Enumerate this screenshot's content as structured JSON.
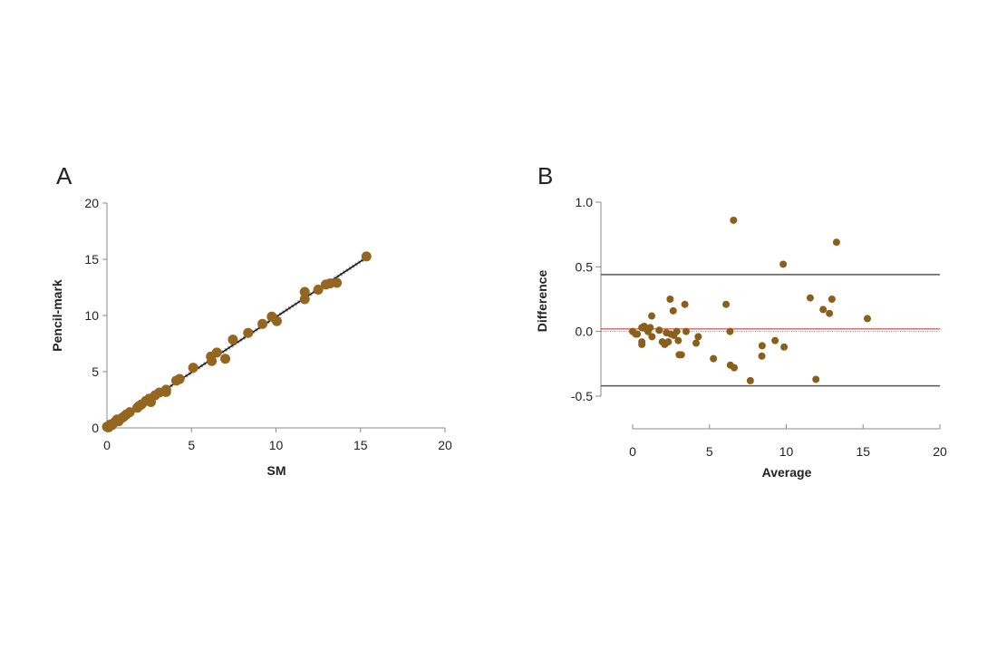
{
  "chart_data": [
    {
      "panel_label": "A",
      "type": "scatter",
      "xlabel": "SM",
      "ylabel": "Pencil-mark",
      "xlim": [
        0,
        20
      ],
      "ylim": [
        0,
        20
      ],
      "xticks": [
        "0",
        "5",
        "10",
        "15",
        "20"
      ],
      "yticks": [
        "0",
        "5",
        "10",
        "15",
        "20"
      ],
      "grid": false,
      "point_color": "#94661f",
      "fit_line": {
        "from": [
          0,
          0
        ],
        "to": [
          15.3,
          15.1
        ]
      },
      "points": [
        [
          0,
          0.1
        ],
        [
          0.1,
          0.05
        ],
        [
          0.2,
          0.3
        ],
        [
          0.3,
          0.25
        ],
        [
          0.45,
          0.5
        ],
        [
          0.6,
          0.75
        ],
        [
          0.7,
          0.6
        ],
        [
          0.9,
          0.9
        ],
        [
          1.0,
          1.0
        ],
        [
          1.15,
          1.2
        ],
        [
          1.35,
          1.4
        ],
        [
          1.8,
          1.8
        ],
        [
          1.9,
          1.95
        ],
        [
          2.05,
          2.1
        ],
        [
          2.3,
          2.4
        ],
        [
          2.5,
          2.6
        ],
        [
          2.6,
          2.3
        ],
        [
          2.85,
          2.9
        ],
        [
          3.1,
          3.15
        ],
        [
          3.5,
          3.4
        ],
        [
          3.5,
          3.2
        ],
        [
          4.1,
          4.2
        ],
        [
          4.3,
          4.35
        ],
        [
          5.1,
          5.35
        ],
        [
          6.15,
          6.35
        ],
        [
          6.2,
          5.95
        ],
        [
          6.5,
          6.7
        ],
        [
          7.0,
          6.15
        ],
        [
          7.45,
          7.85
        ],
        [
          8.35,
          8.45
        ],
        [
          9.2,
          9.25
        ],
        [
          9.75,
          9.9
        ],
        [
          10.05,
          9.5
        ],
        [
          11.7,
          12.1
        ],
        [
          11.7,
          11.45
        ],
        [
          12.5,
          12.3
        ],
        [
          12.95,
          12.75
        ],
        [
          13.2,
          12.85
        ],
        [
          13.6,
          12.9
        ],
        [
          15.35,
          15.25
        ]
      ]
    },
    {
      "panel_label": "B",
      "type": "scatter",
      "xlabel": "Average",
      "ylabel": "Difference",
      "xlim": [
        0,
        20
      ],
      "ylim": [
        -0.5,
        1.0
      ],
      "xticks": [
        "0",
        "5",
        "10",
        "15",
        "20"
      ],
      "yticks": [
        "-0.5",
        "0.0",
        "0.5",
        "1.0"
      ],
      "grid": false,
      "point_color": "#8a5f1c",
      "mean_line": {
        "value": 0.02,
        "color": "#cc2222"
      },
      "zero_line": 0,
      "limits_of_agreement": [
        0.44,
        -0.42
      ],
      "points": [
        [
          0,
          0
        ],
        [
          0.2,
          -0.02
        ],
        [
          0.3,
          -0.02
        ],
        [
          0.6,
          0.03
        ],
        [
          0.75,
          0.04
        ],
        [
          0.87,
          0.02
        ],
        [
          1.0,
          0
        ],
        [
          1.14,
          0.03
        ],
        [
          1.26,
          -0.04
        ],
        [
          0.6,
          -0.08
        ],
        [
          0.6,
          -0.1
        ],
        [
          1.24,
          0.12
        ],
        [
          1.73,
          0.01
        ],
        [
          1.93,
          -0.08
        ],
        [
          2.09,
          -0.1
        ],
        [
          2.2,
          -0.01
        ],
        [
          2.32,
          -0.08
        ],
        [
          2.44,
          0.25
        ],
        [
          2.48,
          -0.02
        ],
        [
          2.64,
          0.16
        ],
        [
          2.68,
          -0.03
        ],
        [
          2.87,
          0
        ],
        [
          2.97,
          -0.07
        ],
        [
          3.03,
          -0.18
        ],
        [
          3.17,
          -0.18
        ],
        [
          3.4,
          0.21
        ],
        [
          3.48,
          0
        ],
        [
          4.13,
          -0.09
        ],
        [
          4.27,
          -0.04
        ],
        [
          5.26,
          -0.21
        ],
        [
          6.08,
          0.21
        ],
        [
          6.34,
          0
        ],
        [
          6.36,
          -0.26
        ],
        [
          6.61,
          -0.28
        ],
        [
          6.57,
          0.86
        ],
        [
          7.66,
          -0.38
        ],
        [
          8.43,
          -0.11
        ],
        [
          8.41,
          -0.19
        ],
        [
          9.27,
          -0.07
        ],
        [
          9.8,
          0.52
        ],
        [
          9.86,
          -0.12
        ],
        [
          11.56,
          0.26
        ],
        [
          11.93,
          -0.37
        ],
        [
          12.4,
          0.17
        ],
        [
          12.81,
          0.14
        ],
        [
          12.97,
          0.25
        ],
        [
          13.27,
          0.69
        ],
        [
          15.28,
          0.1
        ]
      ]
    }
  ]
}
